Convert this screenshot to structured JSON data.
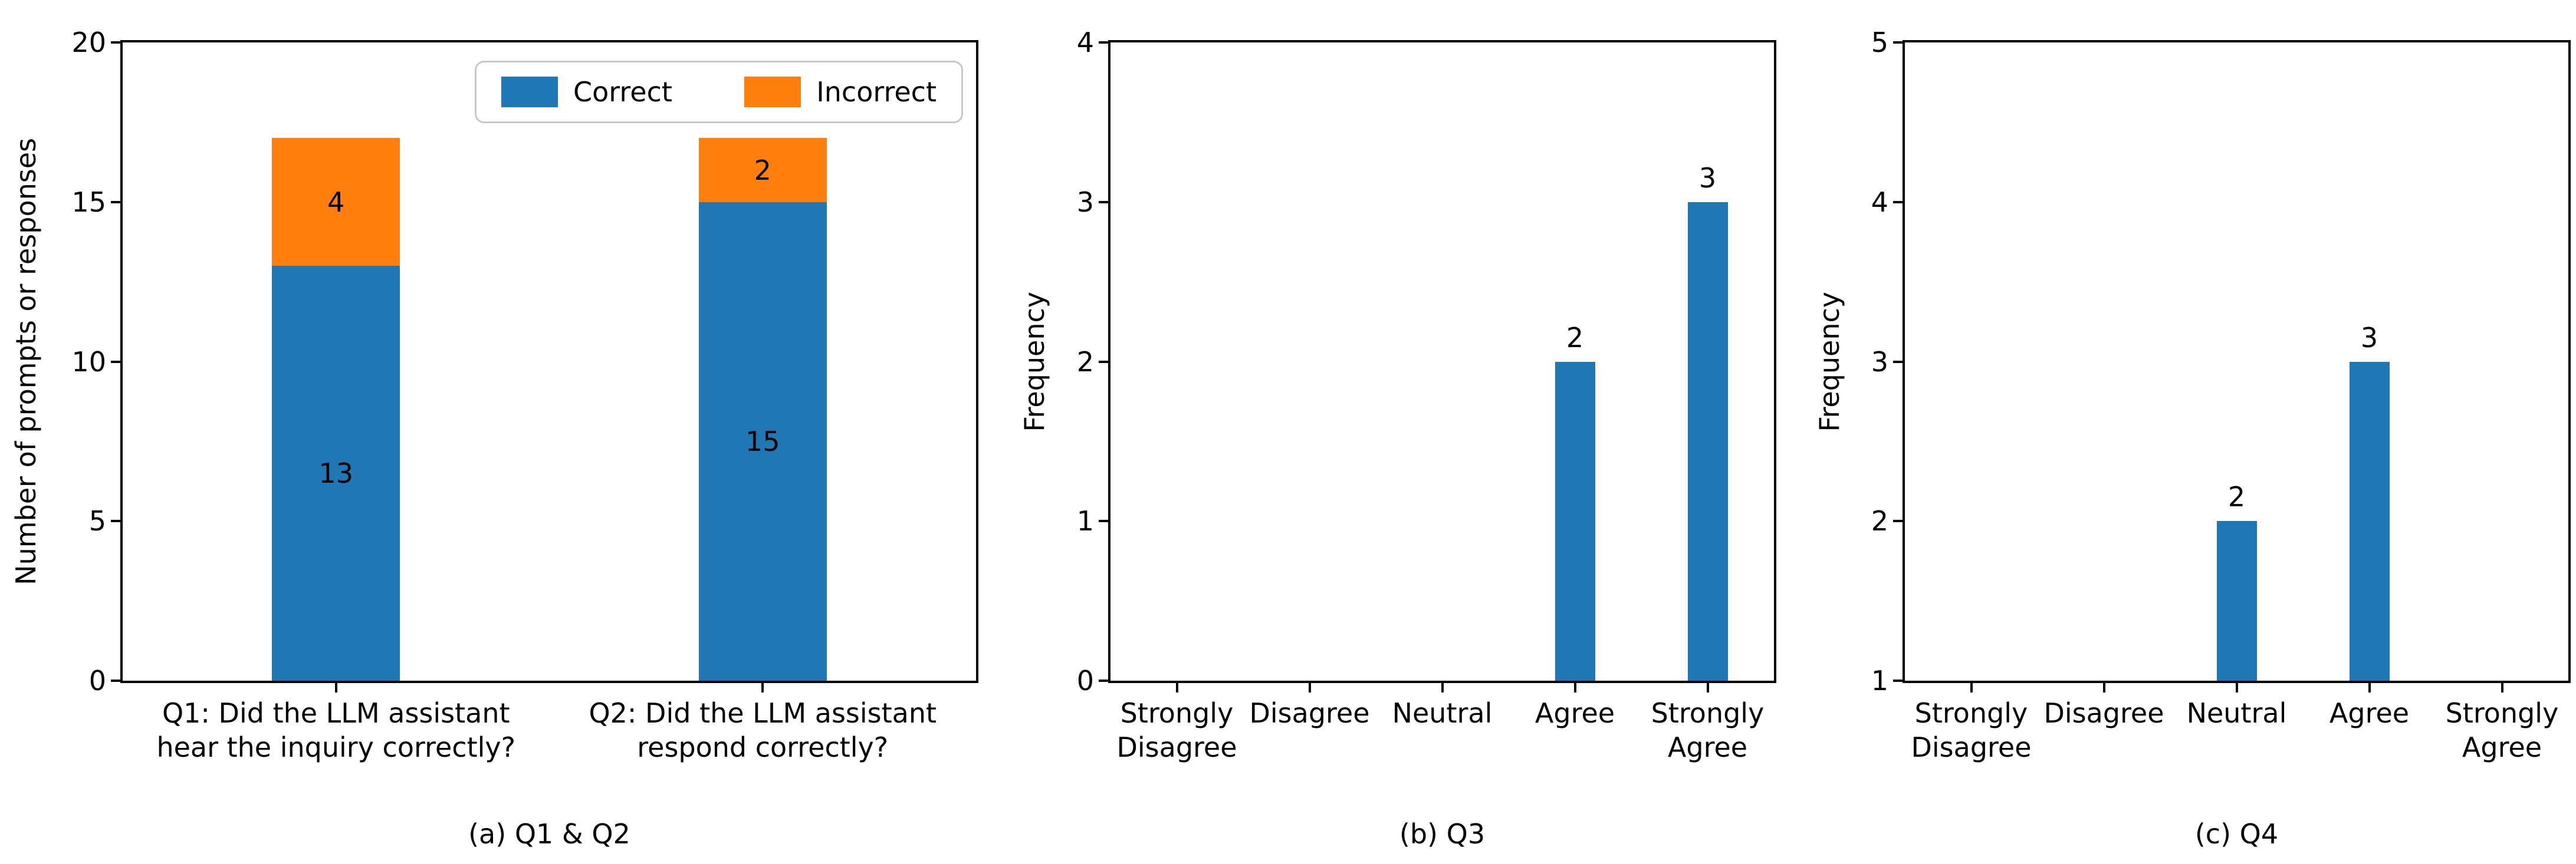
{
  "figure": {
    "background": "#ffffff",
    "text_color": "#000000",
    "accent_colors": {
      "correct_blue": "#1f77b4",
      "incorrect_orange": "#ff7f0e"
    }
  },
  "chart_data": [
    {
      "type": "bar",
      "stacked": true,
      "caption": "(a) Q1 & Q2",
      "ylabel": "Number of prompts or responses",
      "ylim": [
        0,
        20
      ],
      "yticks": [
        0,
        5,
        10,
        15,
        20
      ],
      "grid": false,
      "legend_position": "upper right",
      "categories": [
        "Q1: Did the LLM assistant\nhear the inquiry correctly?",
        "Q2: Did the LLM assistant\nrespond correctly?"
      ],
      "series": [
        {
          "name": "Correct",
          "color": "#1f77b4",
          "values": [
            13,
            15
          ]
        },
        {
          "name": "Incorrect",
          "color": "#ff7f0e",
          "values": [
            4,
            2
          ]
        }
      ],
      "bar_value_labels": {
        "Correct": [
          13,
          15
        ],
        "Incorrect": [
          4,
          2
        ]
      }
    },
    {
      "type": "bar",
      "stacked": false,
      "caption": "(b) Q3",
      "ylabel": "Frequency",
      "ylim": [
        0,
        4
      ],
      "yticks": [
        0,
        1,
        2,
        3,
        4
      ],
      "grid": false,
      "categories": [
        "Strongly\nDisagree",
        "Disagree",
        "Neutral",
        "Agree",
        "Strongly\nAgree"
      ],
      "series": [
        {
          "color": "#1f77b4",
          "values": [
            0,
            0,
            0,
            2,
            3
          ]
        }
      ],
      "visible_bars": [
        {
          "category": "Agree",
          "value": 2
        },
        {
          "category": "Strongly Agree",
          "value": 3
        }
      ]
    },
    {
      "type": "bar",
      "stacked": false,
      "caption": "(c) Q4",
      "ylabel": "Frequency",
      "ylim": [
        1,
        5
      ],
      "yticks": [
        1,
        2,
        3,
        4,
        5
      ],
      "grid": false,
      "categories": [
        "Strongly\nDisagree",
        "Disagree",
        "Neutral",
        "Agree",
        "Strongly\nAgree"
      ],
      "series": [
        {
          "color": "#1f77b4",
          "values": [
            0,
            0,
            2,
            3,
            0
          ]
        }
      ],
      "visible_bars": [
        {
          "category": "Neutral",
          "value": 2
        },
        {
          "category": "Agree",
          "value": 3
        }
      ]
    }
  ]
}
